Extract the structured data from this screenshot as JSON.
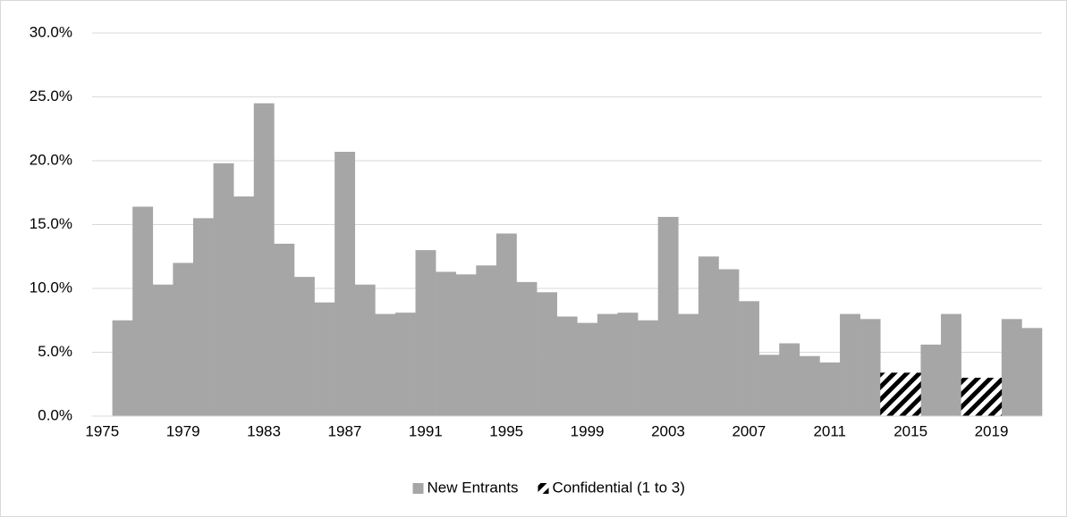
{
  "chart_data": {
    "type": "bar",
    "categories": [
      "1975",
      null,
      null,
      null,
      "1979",
      null,
      null,
      null,
      "1983",
      null,
      null,
      null,
      "1987",
      null,
      null,
      null,
      "1991",
      null,
      null,
      null,
      "1995",
      null,
      null,
      null,
      "1999",
      null,
      null,
      null,
      "2003",
      null,
      null,
      null,
      "2007",
      null,
      null,
      null,
      "2011",
      null,
      null,
      null,
      "2015",
      null,
      null,
      null,
      "2019",
      null,
      null
    ],
    "series": [
      {
        "name": "New Entrants",
        "color": "#a6a6a6",
        "values": [
          null,
          7.5,
          16.4,
          10.3,
          12.0,
          15.5,
          19.8,
          17.2,
          24.5,
          13.5,
          10.9,
          8.9,
          20.7,
          10.3,
          8.0,
          8.1,
          13.0,
          11.3,
          11.1,
          11.8,
          14.3,
          10.5,
          9.7,
          7.8,
          7.3,
          8.0,
          8.1,
          7.5,
          15.6,
          8.0,
          12.5,
          11.5,
          9.0,
          4.8,
          5.7,
          4.7,
          4.2,
          8.0,
          7.6,
          null,
          null,
          5.6,
          8.0,
          null,
          null,
          7.6,
          6.9
        ]
      },
      {
        "name": "Confidential (1 to 3)",
        "color": "#000000",
        "pattern": "diagonal-stripes",
        "values": [
          null,
          null,
          null,
          null,
          null,
          null,
          null,
          null,
          null,
          null,
          null,
          null,
          null,
          null,
          null,
          null,
          null,
          null,
          null,
          null,
          null,
          null,
          null,
          null,
          null,
          null,
          null,
          null,
          null,
          null,
          null,
          null,
          null,
          null,
          null,
          null,
          null,
          null,
          null,
          3.4,
          3.4,
          null,
          null,
          3.0,
          3.0,
          null,
          null
        ]
      }
    ],
    "ylim": [
      0,
      30
    ],
    "yticks": [
      {
        "value": 0,
        "label": "0.0%"
      },
      {
        "value": 5,
        "label": "5.0%"
      },
      {
        "value": 10,
        "label": "10.0%"
      },
      {
        "value": 15,
        "label": "15.0%"
      },
      {
        "value": 20,
        "label": "20.0%"
      },
      {
        "value": 25,
        "label": "25.0%"
      },
      {
        "value": 30,
        "label": "30.0%"
      }
    ],
    "grid": true,
    "legend": "bottom"
  }
}
